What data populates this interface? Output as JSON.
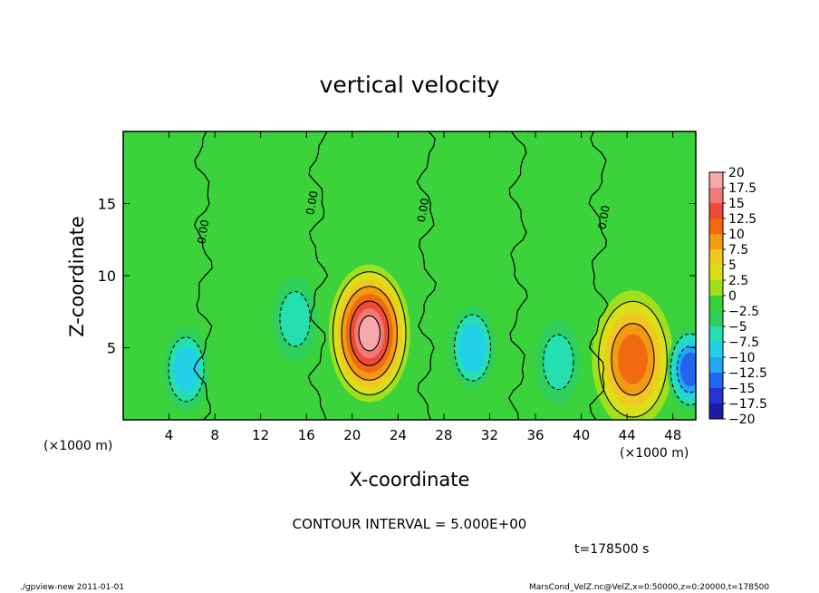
{
  "chart_data": {
    "type": "heatmap",
    "title": "vertical velocity",
    "xlabel": "X-coordinate",
    "ylabel": "Z-coordinate",
    "x_unit_left": "(×1000 m)",
    "x_unit_right": "(×1000 m)",
    "xlim": [
      0,
      50
    ],
    "ylim": [
      0,
      20
    ],
    "x_ticks": [
      4,
      8,
      12,
      16,
      20,
      24,
      28,
      32,
      36,
      40,
      44,
      48
    ],
    "y_ticks": [
      5,
      10,
      15
    ],
    "colorbar": {
      "labels": [
        "20",
        "17.5",
        "15",
        "12.5",
        "10",
        "7.5",
        "5",
        "2.5",
        "0",
        "-2.5",
        "-5",
        "-7.5",
        "-10",
        "-12.5",
        "-15",
        "-17.5",
        "-20"
      ],
      "colors": [
        "#f7a9a9",
        "#f07a7a",
        "#ee4a3a",
        "#f06a10",
        "#f29a10",
        "#f2c820",
        "#d8e018",
        "#9fe01a",
        "#37d23a",
        "#2ecf5a",
        "#24e0b0",
        "#22d0e8",
        "#22a8f0",
        "#2266ee",
        "#2233d8",
        "#1c1ca6",
        "#5a1ca6"
      ]
    },
    "contour_label": "0.00",
    "contour_interval_text": "CONTOUR INTERVAL = 5.000E+00",
    "time_text": "t=178500 s",
    "features": [
      {
        "x": 21.5,
        "z": 6.0,
        "w": 20,
        "kind": "updraft"
      },
      {
        "x": 44.5,
        "z": 4.2,
        "w": 13,
        "kind": "updraft"
      },
      {
        "x": 5.5,
        "z": 3.5,
        "w": -8,
        "kind": "downdraft"
      },
      {
        "x": 30.5,
        "z": 5.0,
        "w": -9,
        "kind": "downdraft"
      },
      {
        "x": 49.5,
        "z": 3.5,
        "w": -13,
        "kind": "downdraft"
      },
      {
        "x": 15.0,
        "z": 7.0,
        "w": -5,
        "kind": "downdraft"
      },
      {
        "x": 38.0,
        "z": 4.0,
        "w": -5,
        "kind": "downdraft"
      }
    ]
  },
  "footer": {
    "left": "./gpview-new  2011-01-01",
    "right": "MarsCond_VelZ.nc@VelZ,x=0:50000,z=0:20000,t=178500"
  },
  "colors": {
    "background_field": "#3cd23c",
    "axis": "#000000"
  }
}
